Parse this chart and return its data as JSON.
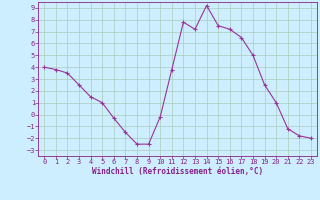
{
  "x": [
    0,
    1,
    2,
    3,
    4,
    5,
    6,
    7,
    8,
    9,
    10,
    11,
    12,
    13,
    14,
    15,
    16,
    17,
    18,
    19,
    20,
    21,
    22,
    23
  ],
  "y": [
    4.0,
    3.8,
    3.5,
    2.5,
    1.5,
    1.0,
    -0.3,
    -1.5,
    -2.5,
    -2.5,
    -0.2,
    3.8,
    7.8,
    7.2,
    9.2,
    7.5,
    7.2,
    6.5,
    5.0,
    2.5,
    1.0,
    -1.2,
    -1.8,
    -2.0
  ],
  "line_color": "#993399",
  "marker": "+",
  "bg_color": "#cceeff",
  "grid_color": "#aaccbb",
  "xlabel": "Windchill (Refroidissement éolien,°C)",
  "xlim": [
    -0.5,
    23.5
  ],
  "ylim": [
    -3.5,
    9.5
  ],
  "xticks": [
    0,
    1,
    2,
    3,
    4,
    5,
    6,
    7,
    8,
    9,
    10,
    11,
    12,
    13,
    14,
    15,
    16,
    17,
    18,
    19,
    20,
    21,
    22,
    23
  ],
  "yticks": [
    -3,
    -2,
    -1,
    0,
    1,
    2,
    3,
    4,
    5,
    6,
    7,
    8,
    9
  ],
  "font_color": "#882288",
  "label_fontsize": 5.5,
  "tick_fontsize": 5.0
}
